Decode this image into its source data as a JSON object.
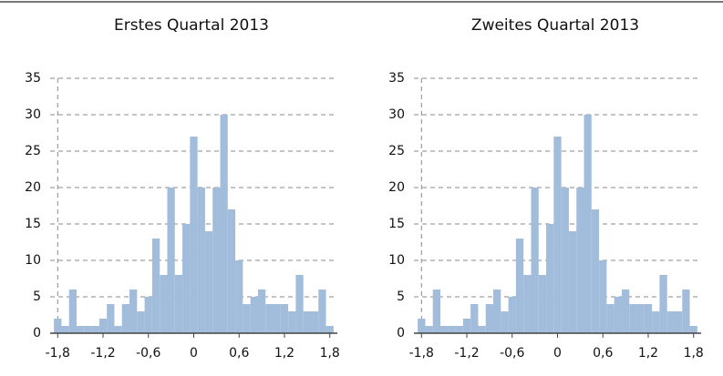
{
  "chart_data": [
    {
      "type": "histogram",
      "title": "Erstes Quartal 2013",
      "bins": [
        -1.85,
        -1.75,
        -1.65,
        -1.55,
        -1.45,
        -1.35,
        -1.25,
        -1.15,
        -1.05,
        -0.95,
        -0.85,
        -0.75,
        -0.65,
        -0.55,
        -0.45,
        -0.35,
        -0.25,
        -0.15,
        -0.05,
        0.05,
        0.15,
        0.25,
        0.35,
        0.45,
        0.55,
        0.65,
        0.75,
        0.85,
        0.95,
        1.05,
        1.15,
        1.25,
        1.35,
        1.45,
        1.55,
        1.65,
        1.75,
        1.85
      ],
      "counts": [
        2,
        1,
        6,
        1,
        1,
        1,
        2,
        4,
        1,
        4,
        6,
        3,
        5,
        13,
        8,
        20,
        8,
        15,
        27,
        20,
        14,
        20,
        30,
        17,
        10,
        4,
        5,
        6,
        4,
        4,
        4,
        3,
        8,
        3,
        3,
        6,
        1
      ],
      "color": "#a2bcdc",
      "xlim": [
        -1.9,
        1.9
      ],
      "xticks": [
        {
          "value": -1.8,
          "label": "-1,8"
        },
        {
          "value": -1.2,
          "label": "-1,2"
        },
        {
          "value": -0.6,
          "label": "-0,6"
        },
        0,
        {
          "value": 0.6,
          "label": "0,6"
        },
        {
          "value": 1.2,
          "label": "1,2"
        },
        {
          "value": 1.8,
          "label": "1,8"
        }
      ],
      "ylim": [
        0,
        35
      ],
      "yticks": [
        0,
        5,
        10,
        15,
        20,
        25,
        30,
        35
      ],
      "grid": true
    },
    {
      "type": "histogram",
      "title": "Zweites Quartal 2013",
      "bins": [
        -1.85,
        -1.75,
        -1.65,
        -1.55,
        -1.45,
        -1.35,
        -1.25,
        -1.15,
        -1.05,
        -0.95,
        -0.85,
        -0.75,
        -0.65,
        -0.55,
        -0.45,
        -0.35,
        -0.25,
        -0.15,
        -0.05,
        0.05,
        0.15,
        0.25,
        0.35,
        0.45,
        0.55,
        0.65,
        0.75,
        0.85,
        0.95,
        1.05,
        1.15,
        1.25,
        1.35,
        1.45,
        1.55,
        1.65,
        1.75,
        1.85
      ],
      "counts": [
        2,
        1,
        6,
        1,
        1,
        1,
        2,
        4,
        1,
        4,
        6,
        3,
        5,
        13,
        8,
        20,
        8,
        15,
        27,
        20,
        14,
        20,
        30,
        17,
        10,
        4,
        5,
        6,
        4,
        4,
        4,
        3,
        8,
        3,
        3,
        6,
        1
      ],
      "color": "#a2bcdc",
      "xlim": [
        -1.9,
        1.9
      ],
      "xticks": [
        {
          "value": -1.8,
          "label": "-1,8"
        },
        {
          "value": -1.2,
          "label": "-1,2"
        },
        {
          "value": -0.6,
          "label": "-0,6"
        },
        0,
        {
          "value": 0.6,
          "label": "0,6"
        },
        {
          "value": 1.2,
          "label": "1,2"
        },
        {
          "value": 1.8,
          "label": "1,8"
        }
      ],
      "ylim": [
        0,
        35
      ],
      "yticks": [
        0,
        5,
        10,
        15,
        20,
        25,
        30,
        35
      ],
      "grid": true
    }
  ]
}
